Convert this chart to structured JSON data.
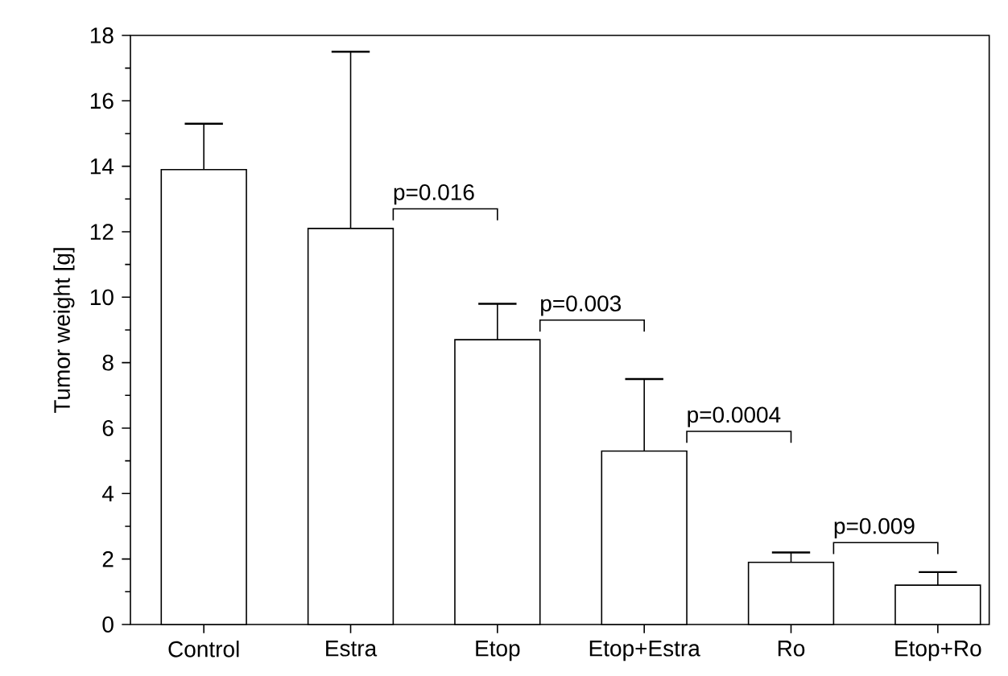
{
  "chart_data": {
    "type": "bar",
    "ylabel": "Tumor weight [g]",
    "categories": [
      "Control",
      "Estra",
      "Etop",
      "Etop+Estra",
      "Ro",
      "Etop+Ro"
    ],
    "values": [
      13.9,
      12.1,
      8.7,
      5.3,
      1.9,
      1.2
    ],
    "errors": [
      [
        13.9,
        15.3
      ],
      [
        12.1,
        17.5
      ],
      [
        8.7,
        9.8
      ],
      [
        5.3,
        7.5
      ],
      [
        1.9,
        2.2
      ],
      [
        1.2,
        1.6
      ]
    ],
    "color": "#ffffff",
    "ylim": [
      0,
      18
    ],
    "yticks": [
      0,
      2,
      4,
      6,
      8,
      10,
      12,
      14,
      16,
      18
    ],
    "grid": false,
    "annotations": [
      "p=0.016",
      "p=0.003",
      "p=0.0004",
      "p=0.009"
    ]
  }
}
